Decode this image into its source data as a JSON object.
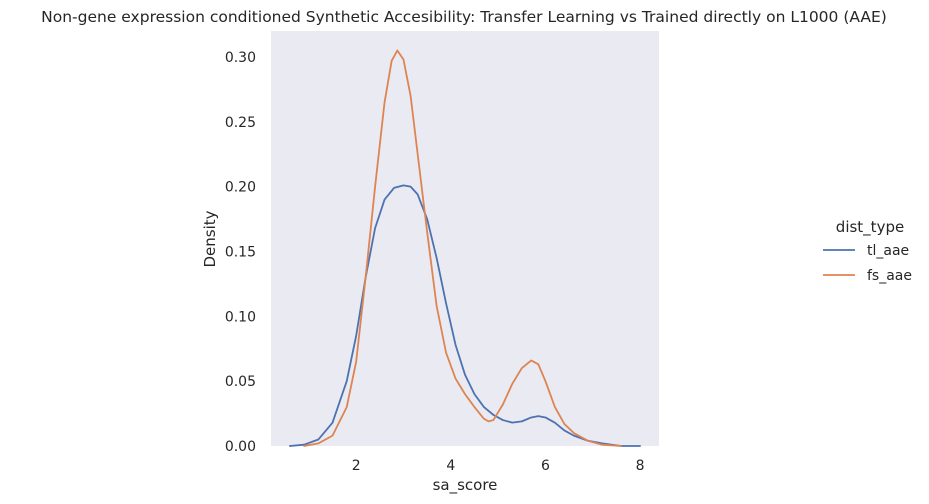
{
  "chart_data": {
    "type": "line",
    "title": "Non-gene expression conditioned Synthetic Accesibility: Transfer Learning vs Trained directly on L1000 (AAE)",
    "xlabel": "sa_score",
    "ylabel": "Density",
    "xlim": [
      0.2,
      8.4
    ],
    "ylim": [
      0.0,
      0.32
    ],
    "xticks": [
      2,
      4,
      6,
      8
    ],
    "xtick_labels": [
      "2",
      "4",
      "6",
      "8"
    ],
    "yticks": [
      0.0,
      0.05,
      0.1,
      0.15,
      0.2,
      0.25,
      0.3
    ],
    "ytick_labels": [
      "0.00",
      "0.05",
      "0.10",
      "0.15",
      "0.20",
      "0.25",
      "0.30"
    ],
    "grid": false,
    "legend": {
      "title": "dist_type",
      "placement": "right"
    },
    "series": [
      {
        "name": "tl_aae",
        "color": "#4c72b0",
        "points": [
          [
            0.6,
            0.0
          ],
          [
            0.9,
            0.001
          ],
          [
            1.2,
            0.005
          ],
          [
            1.5,
            0.018
          ],
          [
            1.8,
            0.05
          ],
          [
            2.0,
            0.085
          ],
          [
            2.2,
            0.13
          ],
          [
            2.4,
            0.168
          ],
          [
            2.6,
            0.19
          ],
          [
            2.8,
            0.199
          ],
          [
            3.0,
            0.201
          ],
          [
            3.15,
            0.2
          ],
          [
            3.3,
            0.194
          ],
          [
            3.5,
            0.175
          ],
          [
            3.7,
            0.145
          ],
          [
            3.9,
            0.11
          ],
          [
            4.1,
            0.078
          ],
          [
            4.3,
            0.055
          ],
          [
            4.5,
            0.04
          ],
          [
            4.7,
            0.03
          ],
          [
            4.9,
            0.024
          ],
          [
            5.1,
            0.02
          ],
          [
            5.3,
            0.018
          ],
          [
            5.5,
            0.019
          ],
          [
            5.7,
            0.022
          ],
          [
            5.85,
            0.023
          ],
          [
            6.0,
            0.022
          ],
          [
            6.2,
            0.018
          ],
          [
            6.4,
            0.012
          ],
          [
            6.6,
            0.008
          ],
          [
            6.9,
            0.004
          ],
          [
            7.2,
            0.002
          ],
          [
            7.6,
            0.0
          ],
          [
            8.0,
            0.0
          ]
        ]
      },
      {
        "name": "fs_aae",
        "color": "#dd8452",
        "points": [
          [
            0.9,
            0.0
          ],
          [
            1.2,
            0.002
          ],
          [
            1.5,
            0.008
          ],
          [
            1.8,
            0.03
          ],
          [
            2.0,
            0.065
          ],
          [
            2.2,
            0.13
          ],
          [
            2.4,
            0.2
          ],
          [
            2.6,
            0.265
          ],
          [
            2.75,
            0.297
          ],
          [
            2.87,
            0.305
          ],
          [
            3.0,
            0.298
          ],
          [
            3.15,
            0.27
          ],
          [
            3.3,
            0.225
          ],
          [
            3.5,
            0.165
          ],
          [
            3.7,
            0.108
          ],
          [
            3.9,
            0.072
          ],
          [
            4.1,
            0.052
          ],
          [
            4.3,
            0.04
          ],
          [
            4.5,
            0.03
          ],
          [
            4.7,
            0.021
          ],
          [
            4.8,
            0.019
          ],
          [
            4.9,
            0.02
          ],
          [
            5.1,
            0.032
          ],
          [
            5.3,
            0.048
          ],
          [
            5.5,
            0.06
          ],
          [
            5.7,
            0.066
          ],
          [
            5.85,
            0.063
          ],
          [
            6.0,
            0.05
          ],
          [
            6.2,
            0.03
          ],
          [
            6.4,
            0.017
          ],
          [
            6.6,
            0.01
          ],
          [
            6.9,
            0.004
          ],
          [
            7.2,
            0.001
          ],
          [
            7.6,
            0.0
          ]
        ]
      }
    ]
  }
}
